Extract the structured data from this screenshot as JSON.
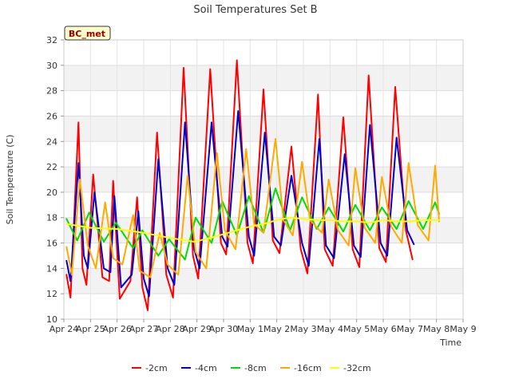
{
  "chart_data": {
    "type": "line",
    "title": "Soil Temperatures Set B",
    "xlabel": "Time",
    "ylabel": "Soil Temperature (C)",
    "station_badge": "BC_met",
    "ylim": [
      10,
      32
    ],
    "yticks": [
      10,
      12,
      14,
      16,
      18,
      20,
      22,
      24,
      26,
      28,
      30,
      32
    ],
    "xlim": [
      0,
      15
    ],
    "xticks": [
      {
        "x": 0,
        "label": "Apr 24"
      },
      {
        "x": 1,
        "label": "Apr 25"
      },
      {
        "x": 2,
        "label": "Apr 26"
      },
      {
        "x": 3,
        "label": "Apr 27"
      },
      {
        "x": 4,
        "label": "Apr 28"
      },
      {
        "x": 5,
        "label": "Apr 29"
      },
      {
        "x": 6,
        "label": "Apr 30"
      },
      {
        "x": 7,
        "label": "May 1"
      },
      {
        "x": 8,
        "label": "May 2"
      },
      {
        "x": 9,
        "label": "May 3"
      },
      {
        "x": 10,
        "label": "May 4"
      },
      {
        "x": 11,
        "label": "May 5"
      },
      {
        "x": 12,
        "label": "May 6"
      },
      {
        "x": 13,
        "label": "May 7"
      },
      {
        "x": 14,
        "label": "May 8"
      },
      {
        "x": 15,
        "label": "May 9"
      }
    ],
    "grid": true,
    "legend_position": "bottom",
    "series": [
      {
        "name": "-2cm",
        "color": "#ff0000",
        "x": [
          0.1,
          0.25,
          0.55,
          0.7,
          0.85,
          1.1,
          1.45,
          1.7,
          1.85,
          2.1,
          2.5,
          2.75,
          2.95,
          3.15,
          3.5,
          3.85,
          4.1,
          4.5,
          4.85,
          5.05,
          5.5,
          5.9,
          6.1,
          6.5,
          6.9,
          7.1,
          7.5,
          7.85,
          8.1,
          8.55,
          8.9,
          9.15,
          9.55,
          9.8,
          10.1,
          10.5,
          10.85,
          11.1,
          11.45,
          11.85,
          12.1,
          12.45,
          12.85,
          13.1,
          13.5,
          13.85,
          14.1
        ],
        "y": [
          13.5,
          11.7,
          25.5,
          14.0,
          12.7,
          21.4,
          13.3,
          13.0,
          20.9,
          11.6,
          13.0,
          19.6,
          12.5,
          10.7,
          24.7,
          13.5,
          11.7,
          29.8,
          15.0,
          13.2,
          29.7,
          16.0,
          15.1,
          30.4,
          16.0,
          14.4,
          28.1,
          16.2,
          15.2,
          23.6,
          15.5,
          13.6,
          27.7,
          15.5,
          14.2,
          25.9,
          15.5,
          14.1,
          29.2,
          15.6,
          14.5,
          28.3,
          17.0,
          14.7,
          null,
          null,
          null
        ]
      },
      {
        "name": "-4cm",
        "color": "#0000cc",
        "x": [
          0.1,
          0.25,
          0.55,
          0.75,
          0.9,
          1.15,
          1.5,
          1.75,
          1.9,
          2.15,
          2.55,
          2.8,
          3.0,
          3.2,
          3.55,
          3.9,
          4.15,
          4.55,
          4.9,
          5.1,
          5.55,
          5.95,
          6.15,
          6.55,
          6.95,
          7.15,
          7.55,
          7.9,
          8.15,
          8.55,
          8.95,
          9.2,
          9.6,
          9.85,
          10.15,
          10.55,
          10.9,
          11.15,
          11.5,
          11.9,
          12.15,
          12.5,
          12.9,
          13.15,
          13.55,
          13.9,
          14.1
        ],
        "y": [
          14.6,
          13.0,
          22.3,
          15.0,
          14.0,
          20.0,
          14.0,
          13.7,
          19.7,
          12.5,
          13.5,
          18.5,
          13.2,
          11.8,
          22.6,
          14.0,
          12.7,
          25.5,
          15.5,
          14.0,
          25.5,
          16.5,
          15.7,
          26.4,
          16.5,
          15.0,
          24.7,
          16.5,
          15.8,
          21.3,
          16.0,
          14.2,
          24.2,
          15.8,
          14.8,
          23.0,
          15.8,
          14.9,
          25.3,
          16.0,
          15.0,
          24.3,
          17.0,
          15.9,
          null,
          null,
          null
        ]
      },
      {
        "name": "-8cm",
        "color": "#00dd00",
        "x": [
          0.1,
          0.5,
          0.95,
          1.5,
          1.95,
          2.6,
          2.95,
          3.55,
          3.95,
          4.55,
          4.95,
          5.55,
          5.95,
          6.5,
          6.95,
          7.5,
          7.95,
          8.5,
          8.95,
          9.5,
          9.95,
          10.5,
          10.95,
          11.5,
          11.95,
          12.5,
          12.95,
          13.5,
          13.95,
          14.1
        ],
        "y": [
          17.9,
          16.2,
          18.4,
          16.1,
          17.6,
          15.6,
          17.0,
          15.0,
          16.3,
          14.7,
          18.0,
          16.0,
          19.3,
          16.6,
          19.7,
          16.8,
          20.3,
          17.0,
          19.6,
          17.1,
          18.8,
          16.9,
          19.0,
          17.0,
          18.8,
          17.1,
          19.3,
          17.1,
          19.2,
          18.3
        ]
      },
      {
        "name": "-16cm",
        "color": "#ffaa00",
        "x": [
          0.1,
          0.3,
          0.6,
          0.9,
          1.2,
          1.55,
          1.85,
          2.2,
          2.6,
          2.85,
          3.25,
          3.6,
          3.9,
          4.3,
          4.65,
          4.95,
          5.35,
          5.75,
          6.05,
          6.45,
          6.85,
          7.15,
          7.5,
          7.95,
          8.25,
          8.6,
          8.95,
          9.25,
          9.7,
          9.95,
          10.3,
          10.7,
          10.95,
          11.3,
          11.7,
          11.95,
          12.3,
          12.7,
          12.95,
          13.3,
          13.7,
          13.95,
          14.1
        ],
        "y": [
          15.7,
          13.5,
          21.0,
          15.8,
          14.0,
          19.2,
          14.8,
          14.3,
          18.2,
          13.8,
          13.3,
          16.8,
          14.3,
          13.5,
          21.3,
          15.3,
          14.0,
          23.1,
          17.0,
          15.5,
          23.4,
          17.5,
          16.8,
          24.2,
          17.8,
          16.6,
          22.4,
          17.8,
          16.8,
          21.0,
          17.0,
          15.8,
          21.9,
          17.2,
          16.0,
          21.2,
          17.3,
          16.0,
          22.3,
          17.4,
          16.2,
          22.1,
          17.7
        ]
      },
      {
        "name": "-32cm",
        "color": "#ffff00",
        "x": [
          0.1,
          1.0,
          2.0,
          3.0,
          4.0,
          4.9,
          5.5,
          6.0,
          6.5,
          7.0,
          7.5,
          8.0,
          8.5,
          9.0,
          9.5,
          10.0,
          10.5,
          11.0,
          11.5,
          12.0,
          12.5,
          13.0,
          13.5,
          14.0,
          14.1
        ],
        "y": [
          17.5,
          17.2,
          17.1,
          16.8,
          16.4,
          16.1,
          16.4,
          16.7,
          17.0,
          17.3,
          17.5,
          17.8,
          18.0,
          17.9,
          17.8,
          17.8,
          17.7,
          17.7,
          17.6,
          17.8,
          17.7,
          17.7,
          17.8,
          17.8,
          17.8
        ]
      }
    ]
  }
}
